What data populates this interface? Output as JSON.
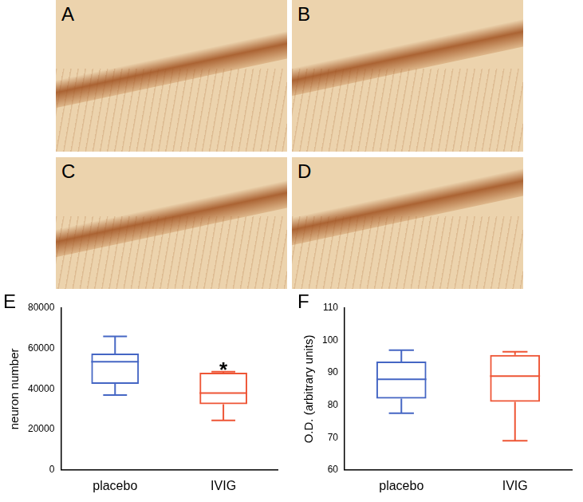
{
  "images": [
    {
      "label": "A"
    },
    {
      "label": "B"
    },
    {
      "label": "C"
    },
    {
      "label": "D"
    }
  ],
  "chart_data": [
    {
      "type": "box",
      "title": "E",
      "y_label": "neuron number",
      "categories": [
        "placebo",
        "IVIG"
      ],
      "colors": [
        "#4566c4",
        "#ee5535"
      ],
      "min": [
        37000,
        24500
      ],
      "q1": [
        42500,
        32500
      ],
      "median": [
        53500,
        38000
      ],
      "q3": [
        57500,
        48000
      ],
      "max": [
        66000,
        48500
      ],
      "annotations": [
        {
          "category": "IVIG",
          "text": "*"
        }
      ],
      "ylim": [
        0,
        80000
      ],
      "yticks": [
        0,
        20000,
        40000,
        60000,
        80000
      ],
      "grid": false
    },
    {
      "type": "box",
      "title": "F",
      "y_label": "O.D. (arbitrary units)",
      "categories": [
        "placebo",
        "IVIG"
      ],
      "colors": [
        "#4566c4",
        "#ee5535"
      ],
      "min": [
        77.5,
        69
      ],
      "q1": [
        82,
        81
      ],
      "median": [
        88,
        89
      ],
      "q3": [
        93.5,
        95.5
      ],
      "max": [
        97,
        96.5
      ],
      "ylim": [
        60,
        110
      ],
      "yticks": [
        60,
        70,
        80,
        90,
        100,
        110
      ],
      "grid": false
    }
  ]
}
